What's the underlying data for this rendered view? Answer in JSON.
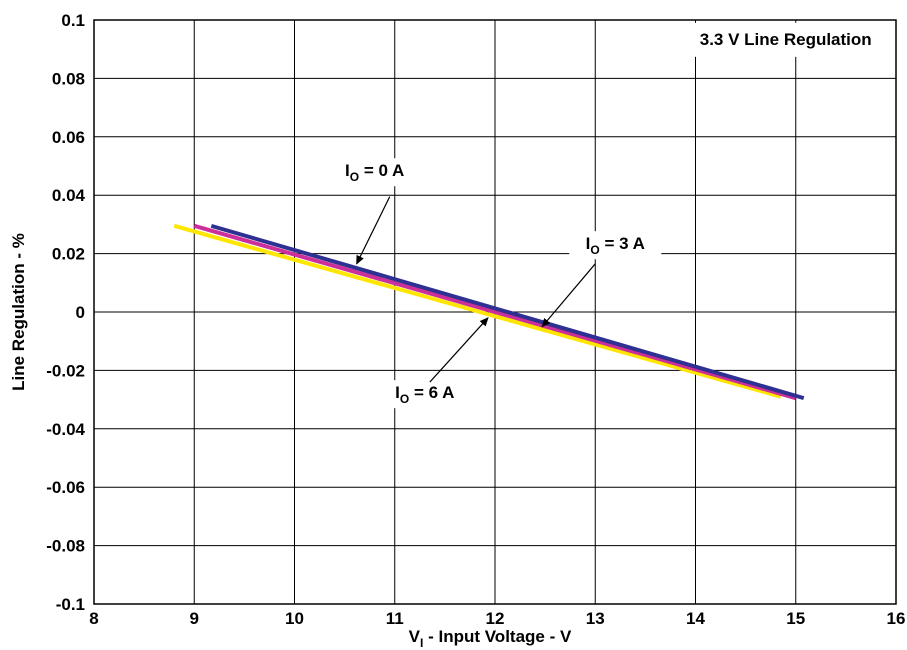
{
  "chart_data": {
    "type": "line",
    "title": "3.3 V Line Regulation",
    "xlabel": {
      "main": "V",
      "sub": "I",
      "rest": " - Input Voltage - V"
    },
    "ylabel": "Line Regulation - %",
    "xlim": [
      8,
      16
    ],
    "ylim": [
      -0.1,
      0.1
    ],
    "x_ticks": [
      "8",
      "9",
      "10",
      "11",
      "12",
      "13",
      "14",
      "15",
      "16"
    ],
    "y_ticks": [
      "0.1",
      "0.08",
      "0.06",
      "0.04",
      "0.02",
      "0",
      "-0.02",
      "-0.04",
      "-0.06",
      "-0.08",
      "-0.1"
    ],
    "grid": true,
    "series": [
      {
        "name": "IO = 6 A",
        "color": "#ffe600",
        "x": [
          8.8,
          14.85
        ],
        "y": [
          0.0295,
          -0.029
        ]
      },
      {
        "name": "IO = 3 A",
        "color": "#cc2e9a",
        "x": [
          9.0,
          15.0
        ],
        "y": [
          0.0295,
          -0.0295
        ]
      },
      {
        "name": "IO = 0 A",
        "color": "#2e3192",
        "x": [
          9.17,
          15.08
        ],
        "y": [
          0.0295,
          -0.0295
        ]
      }
    ],
    "annotations": [
      {
        "main": "I",
        "sub": "O",
        "rest": " = 0 A",
        "x": 10.8,
        "y": 0.0465,
        "arrow_from": [
          10.95,
          0.0395
        ],
        "arrow_to": [
          10.62,
          0.0165
        ]
      },
      {
        "main": "I",
        "sub": "O",
        "rest": " = 3 A",
        "x": 13.2,
        "y": 0.0215,
        "arrow_from": [
          13.0,
          0.0165
        ],
        "arrow_to": [
          12.47,
          -0.005
        ]
      },
      {
        "main": "I",
        "sub": "O",
        "rest": " = 6 A",
        "x": 11.3,
        "y": -0.0295,
        "arrow_from": [
          11.35,
          -0.024
        ],
        "arrow_to": [
          11.93,
          -0.002
        ]
      }
    ]
  }
}
